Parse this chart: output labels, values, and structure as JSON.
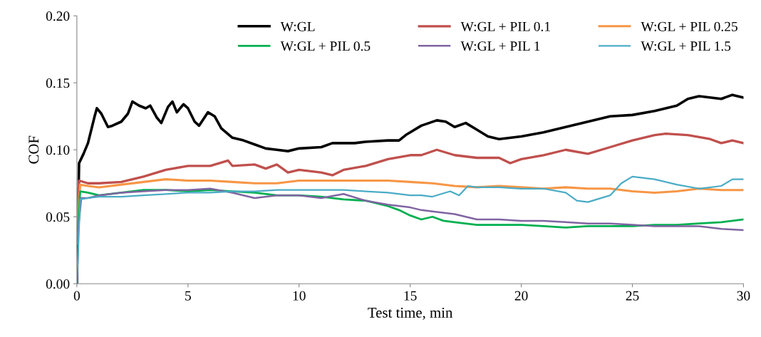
{
  "chart_data": {
    "type": "line",
    "xlabel": "Test time, min",
    "ylabel": "COF",
    "xlim": [
      0,
      30
    ],
    "xticks": [
      0,
      5,
      10,
      15,
      20,
      25,
      30
    ],
    "ylim": [
      0,
      0.2
    ],
    "yticks": [
      {
        "value": 0,
        "label": "0.00"
      },
      {
        "value": 0.05,
        "label": "0.05"
      },
      {
        "value": 0.1,
        "label": "0.10"
      },
      {
        "value": 0.15,
        "label": "0.15"
      },
      {
        "value": 0.2,
        "label": "0.20"
      }
    ],
    "grid": false,
    "legend": "top right",
    "marker": "none",
    "line_style": "solid",
    "series": [
      {
        "name": "W:GL",
        "color": "#000000",
        "x": [
          0,
          0.1,
          0.3,
          0.5,
          0.8,
          0.9,
          1.1,
          1.4,
          1.6,
          2.0,
          2.3,
          2.5,
          2.8,
          3.1,
          3.3,
          3.6,
          3.8,
          4.1,
          4.3,
          4.5,
          4.8,
          5.0,
          5.3,
          5.5,
          5.9,
          6.2,
          6.5,
          7,
          7.5,
          8,
          8.5,
          9,
          9.5,
          10,
          11,
          11.5,
          12.5,
          13,
          14,
          14.5,
          14.8,
          15,
          15.5,
          16.2,
          16.6,
          17,
          17.5,
          18,
          18.5,
          19,
          20,
          21,
          22,
          23,
          24,
          25,
          26,
          27,
          27.5,
          28,
          29,
          29.5,
          30
        ],
        "values": [
          0,
          0.09,
          0.097,
          0.105,
          0.125,
          0.131,
          0.127,
          0.117,
          0.118,
          0.121,
          0.127,
          0.136,
          0.133,
          0.131,
          0.133,
          0.124,
          0.12,
          0.132,
          0.136,
          0.128,
          0.134,
          0.131,
          0.121,
          0.118,
          0.128,
          0.125,
          0.116,
          0.109,
          0.107,
          0.104,
          0.101,
          0.1,
          0.099,
          0.101,
          0.102,
          0.105,
          0.105,
          0.106,
          0.107,
          0.107,
          0.111,
          0.113,
          0.118,
          0.122,
          0.121,
          0.117,
          0.12,
          0.115,
          0.11,
          0.108,
          0.11,
          0.113,
          0.117,
          0.121,
          0.125,
          0.126,
          0.129,
          0.133,
          0.138,
          0.14,
          0.138,
          0.141,
          0.139
        ]
      },
      {
        "name": "W:GL + PIL 0.1",
        "color": "#c0504d",
        "x": [
          0,
          0.1,
          0.5,
          1,
          2,
          3,
          4,
          5,
          6,
          6.8,
          7,
          8,
          8.5,
          9,
          9.5,
          10,
          11,
          11.5,
          12,
          13,
          14,
          15,
          15.5,
          16.2,
          17,
          18,
          19,
          19.5,
          20,
          21,
          22,
          23,
          24,
          25,
          26,
          26.5,
          27.5,
          28.5,
          29,
          29.5,
          30
        ],
        "values": [
          0.05,
          0.077,
          0.075,
          0.075,
          0.076,
          0.08,
          0.085,
          0.088,
          0.088,
          0.092,
          0.088,
          0.089,
          0.086,
          0.089,
          0.083,
          0.085,
          0.083,
          0.081,
          0.085,
          0.088,
          0.093,
          0.096,
          0.096,
          0.1,
          0.096,
          0.094,
          0.094,
          0.09,
          0.093,
          0.096,
          0.1,
          0.097,
          0.102,
          0.107,
          0.111,
          0.112,
          0.111,
          0.108,
          0.105,
          0.107,
          0.105
        ]
      },
      {
        "name": "W:GL + PIL 0.25",
        "color": "#f79646",
        "x": [
          0,
          0.15,
          0.5,
          1,
          2,
          3,
          4,
          5,
          6,
          7,
          8,
          9,
          10,
          12,
          14,
          15,
          16,
          17,
          18,
          19,
          20,
          21,
          22,
          23,
          24,
          25,
          26,
          27,
          28,
          29,
          30
        ],
        "values": [
          0.04,
          0.074,
          0.073,
          0.072,
          0.074,
          0.076,
          0.078,
          0.077,
          0.077,
          0.076,
          0.075,
          0.075,
          0.077,
          0.077,
          0.077,
          0.076,
          0.075,
          0.073,
          0.072,
          0.073,
          0.072,
          0.071,
          0.072,
          0.071,
          0.071,
          0.069,
          0.068,
          0.069,
          0.071,
          0.07,
          0.07
        ]
      },
      {
        "name": "W:GL + PIL 0.5",
        "color": "#00b050",
        "x": [
          0,
          0.15,
          0.5,
          1,
          2,
          3,
          4,
          5,
          6,
          7,
          8,
          9,
          10,
          11,
          12,
          13,
          14,
          14.5,
          15,
          15.5,
          16,
          16.5,
          17,
          18,
          19,
          20,
          21,
          22,
          23,
          24,
          25,
          26,
          27,
          28,
          29,
          30
        ],
        "values": [
          0.03,
          0.069,
          0.068,
          0.066,
          0.068,
          0.07,
          0.07,
          0.069,
          0.07,
          0.069,
          0.068,
          0.066,
          0.066,
          0.065,
          0.063,
          0.062,
          0.058,
          0.055,
          0.051,
          0.048,
          0.05,
          0.047,
          0.046,
          0.044,
          0.044,
          0.044,
          0.043,
          0.042,
          0.043,
          0.043,
          0.043,
          0.044,
          0.044,
          0.045,
          0.046,
          0.048
        ]
      },
      {
        "name": "W:GL + PIL 1",
        "color": "#8064a2",
        "x": [
          0,
          0.2,
          0.5,
          1,
          2,
          3,
          4,
          5,
          6,
          7,
          8,
          9,
          10,
          11,
          12,
          13,
          14,
          15,
          15.5,
          16,
          17,
          18,
          19,
          20,
          21,
          22,
          23,
          24,
          25,
          26,
          27,
          28,
          29,
          30
        ],
        "values": [
          0.03,
          0.064,
          0.064,
          0.066,
          0.068,
          0.069,
          0.07,
          0.07,
          0.071,
          0.068,
          0.064,
          0.066,
          0.066,
          0.064,
          0.067,
          0.062,
          0.059,
          0.057,
          0.055,
          0.054,
          0.052,
          0.048,
          0.048,
          0.047,
          0.047,
          0.046,
          0.045,
          0.045,
          0.044,
          0.043,
          0.043,
          0.043,
          0.041,
          0.04
        ]
      },
      {
        "name": "W:GL + PIL 1.5",
        "color": "#4bacc6",
        "x": [
          0,
          0.15,
          0.5,
          1,
          2,
          3,
          4,
          5,
          6,
          7,
          8,
          9,
          10,
          11,
          12,
          13,
          14,
          15,
          15.5,
          16,
          16.8,
          17.2,
          17.6,
          18,
          19,
          20,
          21,
          22,
          22.5,
          23,
          24,
          24.5,
          25,
          26,
          27,
          28,
          29,
          29.5,
          30
        ],
        "values": [
          0,
          0.063,
          0.064,
          0.065,
          0.065,
          0.066,
          0.067,
          0.068,
          0.068,
          0.069,
          0.069,
          0.07,
          0.07,
          0.07,
          0.07,
          0.069,
          0.068,
          0.066,
          0.066,
          0.065,
          0.069,
          0.066,
          0.073,
          0.072,
          0.072,
          0.071,
          0.071,
          0.068,
          0.062,
          0.061,
          0.066,
          0.075,
          0.08,
          0.078,
          0.074,
          0.071,
          0.073,
          0.078,
          0.078
        ]
      }
    ]
  }
}
